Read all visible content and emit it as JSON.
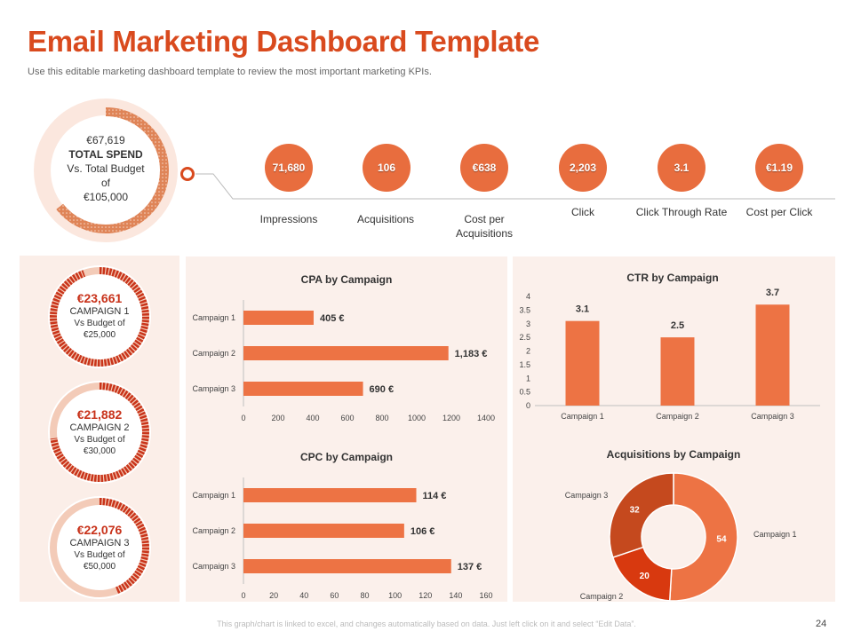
{
  "header": {
    "title": "Email Marketing Dashboard Template",
    "subtitle": "Use this editable marketing dashboard template to review the most important marketing KPIs."
  },
  "total_spend": {
    "amount": "€67,619",
    "label": "TOTAL SPEND",
    "vs_line1": "Vs. Total Budget",
    "vs_line2": "of",
    "budget": "€105,000",
    "fraction": 0.644
  },
  "kpis": [
    {
      "value": "71,680",
      "label": "Impressions"
    },
    {
      "value": "106",
      "label": "Acquisitions"
    },
    {
      "value": "€638",
      "label": "Cost per Acquisitions"
    },
    {
      "value": "2,203",
      "label": "Click"
    },
    {
      "value": "3.1",
      "label": "Click Through Rate"
    },
    {
      "value": "€1.19",
      "label": "Cost per Click"
    }
  ],
  "campaigns": [
    {
      "amount": "€23,661",
      "name": "CAMPAIGN 1",
      "vs": "Vs Budget of",
      "budget": "€25,000",
      "fraction": 0.946
    },
    {
      "amount": "€21,882",
      "name": "CAMPAIGN 2",
      "vs": "Vs Budget of",
      "budget": "€30,000",
      "fraction": 0.729
    },
    {
      "amount": "€22,076",
      "name": "CAMPAIGN 3",
      "vs": "Vs Budget of",
      "budget": "€50,000",
      "fraction": 0.442
    }
  ],
  "colors": {
    "accent": "#d94a1e",
    "bar": "#ed7344",
    "panel": "#fbf0eb",
    "donut": [
      "#ed7344",
      "#d8390f",
      "#c5491e"
    ]
  },
  "chart_data": [
    {
      "type": "bar",
      "orientation": "horizontal",
      "title": "CPA by Campaign",
      "categories": [
        "Campaign 1",
        "Campaign 2",
        "Campaign 3"
      ],
      "values": [
        405,
        1183,
        690
      ],
      "data_labels": [
        "405 €",
        "1,183 €",
        "690 €"
      ],
      "xlim": [
        0,
        1400
      ],
      "ticks": [
        0,
        200,
        400,
        600,
        800,
        1000,
        1200,
        1400
      ],
      "tick_labels": [
        "0",
        "200",
        "400",
        "600",
        "800",
        "1000",
        "1200",
        "1400"
      ]
    },
    {
      "type": "bar",
      "orientation": "vertical",
      "title": "CTR by Campaign",
      "categories": [
        "Campaign 1",
        "Campaign 2",
        "Campaign 3"
      ],
      "values": [
        3.1,
        2.5,
        3.7
      ],
      "data_labels": [
        "3.1",
        "2.5",
        "3.7"
      ],
      "ylim": [
        0,
        4
      ],
      "ticks": [
        0,
        0.5,
        1,
        1.5,
        2,
        2.5,
        3,
        3.5,
        4
      ],
      "tick_labels": [
        "0",
        "0.5",
        "1",
        "1.5",
        "2",
        "2.5",
        "3",
        "3.5",
        "4"
      ]
    },
    {
      "type": "bar",
      "orientation": "horizontal",
      "title": "CPC by Campaign",
      "categories": [
        "Campaign 1",
        "Campaign 2",
        "Campaign 3"
      ],
      "values": [
        114,
        106,
        137
      ],
      "data_labels": [
        "114 €",
        "106 €",
        "137 €"
      ],
      "xlim": [
        0,
        160
      ],
      "ticks": [
        0,
        20,
        40,
        60,
        80,
        100,
        120,
        140,
        160
      ],
      "tick_labels": [
        "0",
        "20",
        "40",
        "60",
        "80",
        "100",
        "120",
        "140",
        "160"
      ]
    },
    {
      "type": "pie",
      "donut": true,
      "title": "Acquisitions by Campaign",
      "categories": [
        "Campaign 1",
        "Campaign 2",
        "Campaign 3"
      ],
      "values": [
        54,
        20,
        32
      ],
      "data_labels": [
        "54",
        "20",
        "32"
      ]
    }
  ],
  "footer": {
    "note": "This graph/chart is linked to excel, and changes automatically based on data. Just left click on it and select “Edit Data”.",
    "page": "24"
  }
}
